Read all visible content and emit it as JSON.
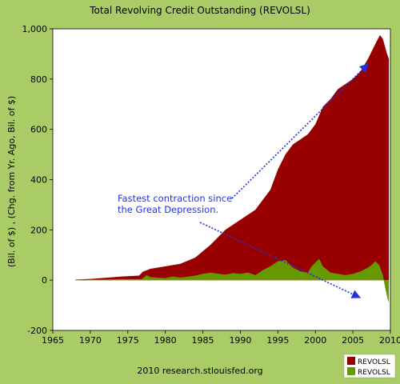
{
  "chart_data": {
    "type": "area",
    "title": "Total Revolving Credit Outstanding (REVOLSL)",
    "ylabel": "(Bil. of $) , (Chg. from Yr. Ago, Bil. of $)",
    "xlabel": "",
    "footer": "2010 research.stlouisfed.org",
    "xlim": [
      1965,
      2010
    ],
    "ylim": [
      -200,
      1000
    ],
    "x_ticks": [
      1965,
      1970,
      1975,
      1980,
      1985,
      1990,
      1995,
      2000,
      2005,
      2010
    ],
    "y_ticks": [
      -200,
      0,
      200,
      400,
      600,
      800,
      1000
    ],
    "y_tick_labels": [
      "-200",
      "0",
      "200",
      "400",
      "600",
      "800",
      "1,000"
    ],
    "legend_position": "bottom-right",
    "annotation": {
      "lines": [
        "Fastest contraction since",
        "the Great Depression."
      ],
      "color": "#2233dd"
    },
    "series": [
      {
        "name": "REVOLSL",
        "units": "Bil. of $",
        "color": "#990000",
        "x": [
          1968.0,
          1970.0,
          1972.0,
          1974.0,
          1976.5,
          1977.0,
          1978.0,
          1980.0,
          1982.0,
          1984.0,
          1986.0,
          1988.0,
          1990.0,
          1992.0,
          1994.0,
          1995.0,
          1996.0,
          1997.0,
          1998.0,
          1999.0,
          2000.0,
          2001.0,
          2002.0,
          2003.0,
          2004.0,
          2005.0,
          2006.0,
          2007.0,
          2008.0,
          2008.6,
          2009.0,
          2009.5,
          2009.8
        ],
        "values": [
          2,
          5,
          9,
          14,
          18,
          33,
          45,
          55,
          65,
          90,
          140,
          200,
          240,
          280,
          360,
          440,
          500,
          540,
          560,
          580,
          620,
          690,
          720,
          760,
          780,
          800,
          830,
          880,
          940,
          975,
          960,
          905,
          880
        ]
      },
      {
        "name": "REVOLSL",
        "units": "Chg. from Yr. Ago, Bil. of $",
        "color": "#669900",
        "x": [
          1968.0,
          1970.0,
          1972.0,
          1974.0,
          1976.0,
          1976.9,
          1977.5,
          1978.0,
          1980.0,
          1981.0,
          1982.0,
          1984.0,
          1985.0,
          1986.0,
          1988.0,
          1989.0,
          1990.0,
          1991.0,
          1992.0,
          1993.0,
          1994.0,
          1995.0,
          1996.0,
          1997.0,
          1998.0,
          1999.0,
          1999.5,
          2000.0,
          2000.5,
          2001.0,
          2002.0,
          2003.0,
          2004.0,
          2005.0,
          2006.0,
          2007.0,
          2007.5,
          2008.0,
          2008.5,
          2009.0,
          2009.3,
          2009.6,
          2009.8
        ],
        "values": [
          1,
          2,
          2,
          4,
          4,
          5,
          20,
          12,
          8,
          15,
          10,
          18,
          25,
          30,
          22,
          28,
          25,
          30,
          20,
          40,
          55,
          75,
          80,
          50,
          35,
          30,
          55,
          70,
          85,
          55,
          30,
          25,
          20,
          25,
          35,
          50,
          60,
          75,
          60,
          20,
          -30,
          -70,
          -90
        ]
      }
    ]
  }
}
